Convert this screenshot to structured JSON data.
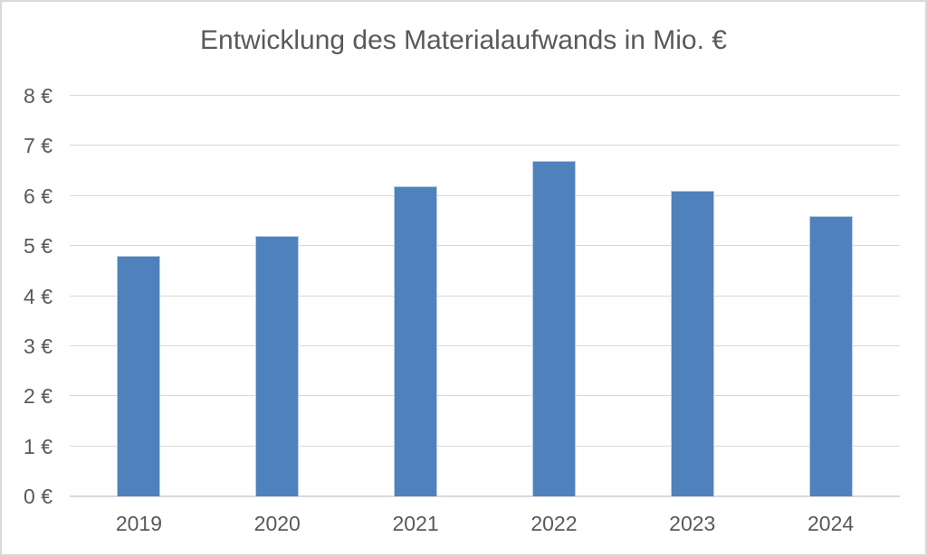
{
  "window": {
    "background_color": "#ffffff",
    "border_color": "#d9d9d9"
  },
  "chart_data": {
    "type": "bar",
    "title": "Entwicklung des Materialaufwands in Mio. €",
    "categories": [
      "2019",
      "2020",
      "2021",
      "2022",
      "2023",
      "2024"
    ],
    "values": [
      4.8,
      5.2,
      6.2,
      6.7,
      6.1,
      5.6
    ],
    "xlabel": "",
    "ylabel": "",
    "ylim": [
      0,
      8
    ],
    "ytick_step": 1,
    "ytick_suffix": " €",
    "ytick_labels": [
      "0 €",
      "1 €",
      "2 €",
      "3 €",
      "4 €",
      "5 €",
      "6 €",
      "7 €",
      "8 €"
    ],
    "grid": true,
    "legend_position": "none",
    "bar_color": "#4f81bd",
    "bar_edge_color": "#b9cde5",
    "gridline_color": "#d9d9d9",
    "axis_line_color": "#d9d9d9",
    "text_color": "#595959"
  }
}
